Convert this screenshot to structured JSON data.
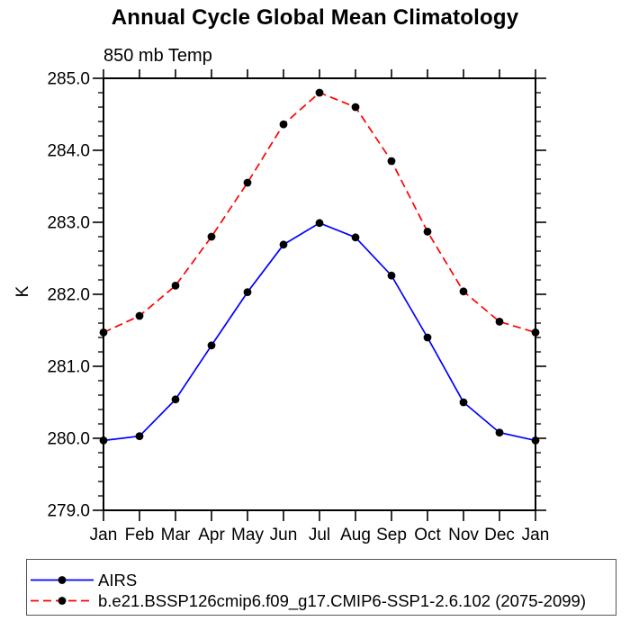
{
  "chart_data": {
    "type": "line",
    "title": "Annual Cycle Global Mean Climatology",
    "subtitle": "850 mb Temp",
    "ylabel": "K",
    "xlabel": "",
    "x_categories": [
      "Jan",
      "Feb",
      "Mar",
      "Apr",
      "May",
      "Jun",
      "Jul",
      "Aug",
      "Sep",
      "Oct",
      "Nov",
      "Dec",
      "Jan"
    ],
    "ylim": [
      279.0,
      285.0
    ],
    "ytick_labels": [
      "285.0",
      "284.0",
      "283.0",
      "282.0",
      "281.0",
      "280.0",
      "279.0"
    ],
    "ytick_minor_interval": 0.2,
    "grid": false,
    "legend_position": "bottom-left",
    "axis_color": "#000000",
    "series": [
      {
        "name": "AIRS",
        "color": "#0000ff",
        "line_style": "solid",
        "marker": "filled-circle",
        "marker_color": "#000000",
        "values": [
          279.97,
          280.03,
          280.54,
          281.29,
          282.03,
          282.69,
          282.99,
          282.79,
          282.26,
          281.4,
          280.5,
          280.08,
          279.97
        ]
      },
      {
        "name": "b.e21.BSSP126cmip6.f09_g17.CMIP6-SSP1-2.6.102 (2075-2099)",
        "color": "#ff0000",
        "line_style": "dashed",
        "dasharray": "9 5",
        "marker": "filled-circle",
        "marker_color": "#000000",
        "values": [
          281.47,
          281.7,
          282.12,
          282.8,
          283.55,
          284.36,
          284.8,
          284.6,
          283.85,
          282.87,
          282.04,
          281.62,
          281.47
        ]
      }
    ]
  }
}
